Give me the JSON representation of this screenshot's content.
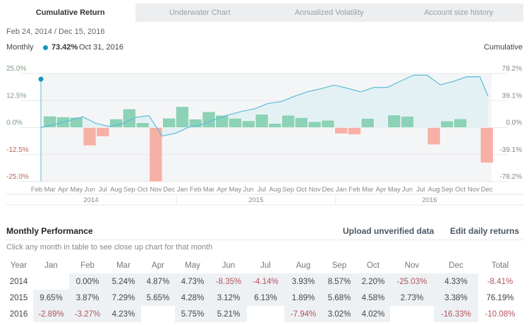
{
  "tabs": [
    {
      "label": "Cumulative Return",
      "active": true
    },
    {
      "label": "Underwater Chart"
    },
    {
      "label": "Annualized Volatility"
    },
    {
      "label": "Account size history"
    }
  ],
  "date_range": "Feb 24, 2014 / Dec 15, 2016",
  "legend": {
    "monthly": "Monthly",
    "value": "73.42%",
    "date": "Oct 31, 2016",
    "cumulative": "Cumulative"
  },
  "colors": {
    "positive": "#8dd1b6",
    "negative": "#f7b0a6",
    "line": "#5bbcd6",
    "area": "#dff0f5",
    "marker": "#1a95b8"
  },
  "chart_data": {
    "type": "bar",
    "left_axis": {
      "ticks": [
        "25.0%",
        "12.5%",
        "0.0%",
        "-12.5%",
        "-25.0%"
      ],
      "ylim": [
        -25,
        25
      ]
    },
    "right_axis": {
      "ticks": [
        "78.2%",
        "39.1%",
        "0.0%",
        "-39.1%",
        "-78.2%"
      ],
      "ylim": [
        -78.2,
        78.2
      ]
    },
    "months": [
      "Feb",
      "Mar",
      "Apr",
      "May",
      "Jun",
      "Jul",
      "Aug",
      "Sep",
      "Oct",
      "Nov",
      "Dec",
      "Jan",
      "Feb",
      "Mar",
      "Apr",
      "May",
      "Jun",
      "Jul",
      "Aug",
      "Sep",
      "Oct",
      "Nov",
      "Dec",
      "Jan",
      "Feb",
      "Mar",
      "Apr",
      "May",
      "Jun",
      "Jul",
      "Aug",
      "Sep",
      "Oct",
      "Nov",
      "Dec"
    ],
    "years": [
      "2014",
      "2015",
      "2016"
    ],
    "monthly_returns": [
      0.0,
      5.24,
      4.87,
      4.73,
      -8.35,
      -4.14,
      3.93,
      8.57,
      2.2,
      -25.03,
      4.33,
      9.65,
      3.87,
      7.29,
      5.65,
      4.28,
      3.12,
      6.13,
      1.89,
      5.68,
      4.58,
      2.73,
      3.38,
      -2.89,
      -3.27,
      4.23,
      0,
      5.75,
      5.21,
      0,
      -7.94,
      3.02,
      4.02,
      0,
      -16.33
    ],
    "series": [
      {
        "name": "Monthly"
      },
      {
        "name": "Cumulative"
      }
    ]
  },
  "performance": {
    "title": "Monthly Performance",
    "upload": "Upload unverified data",
    "edit": "Edit daily returns",
    "hint": "Click any month in table to see close up chart for that month",
    "headers": [
      "Year",
      "Jan",
      "Feb",
      "Mar",
      "Apr",
      "May",
      "Jun",
      "Jul",
      "Aug",
      "Sep",
      "Oct",
      "Nov",
      "Dec",
      "Total"
    ],
    "rows": [
      [
        "2014",
        "",
        "0.00%",
        "5.24%",
        "4.87%",
        "4.73%",
        "-8.35%",
        "-4.14%",
        "3.93%",
        "8.57%",
        "2.20%",
        "-25.03%",
        "4.33%",
        "-8.41%"
      ],
      [
        "2015",
        "9.65%",
        "3.87%",
        "7.29%",
        "5.65%",
        "4.28%",
        "3.12%",
        "6.13%",
        "1.89%",
        "5.68%",
        "4.58%",
        "2.73%",
        "3.38%",
        "76.19%"
      ],
      [
        "2016",
        "-2.89%",
        "-3.27%",
        "4.23%",
        "",
        "5.75%",
        "5.21%",
        "",
        "-7.94%",
        "3.02%",
        "4.02%",
        "",
        "-16.33%",
        "-10.08%"
      ]
    ]
  }
}
